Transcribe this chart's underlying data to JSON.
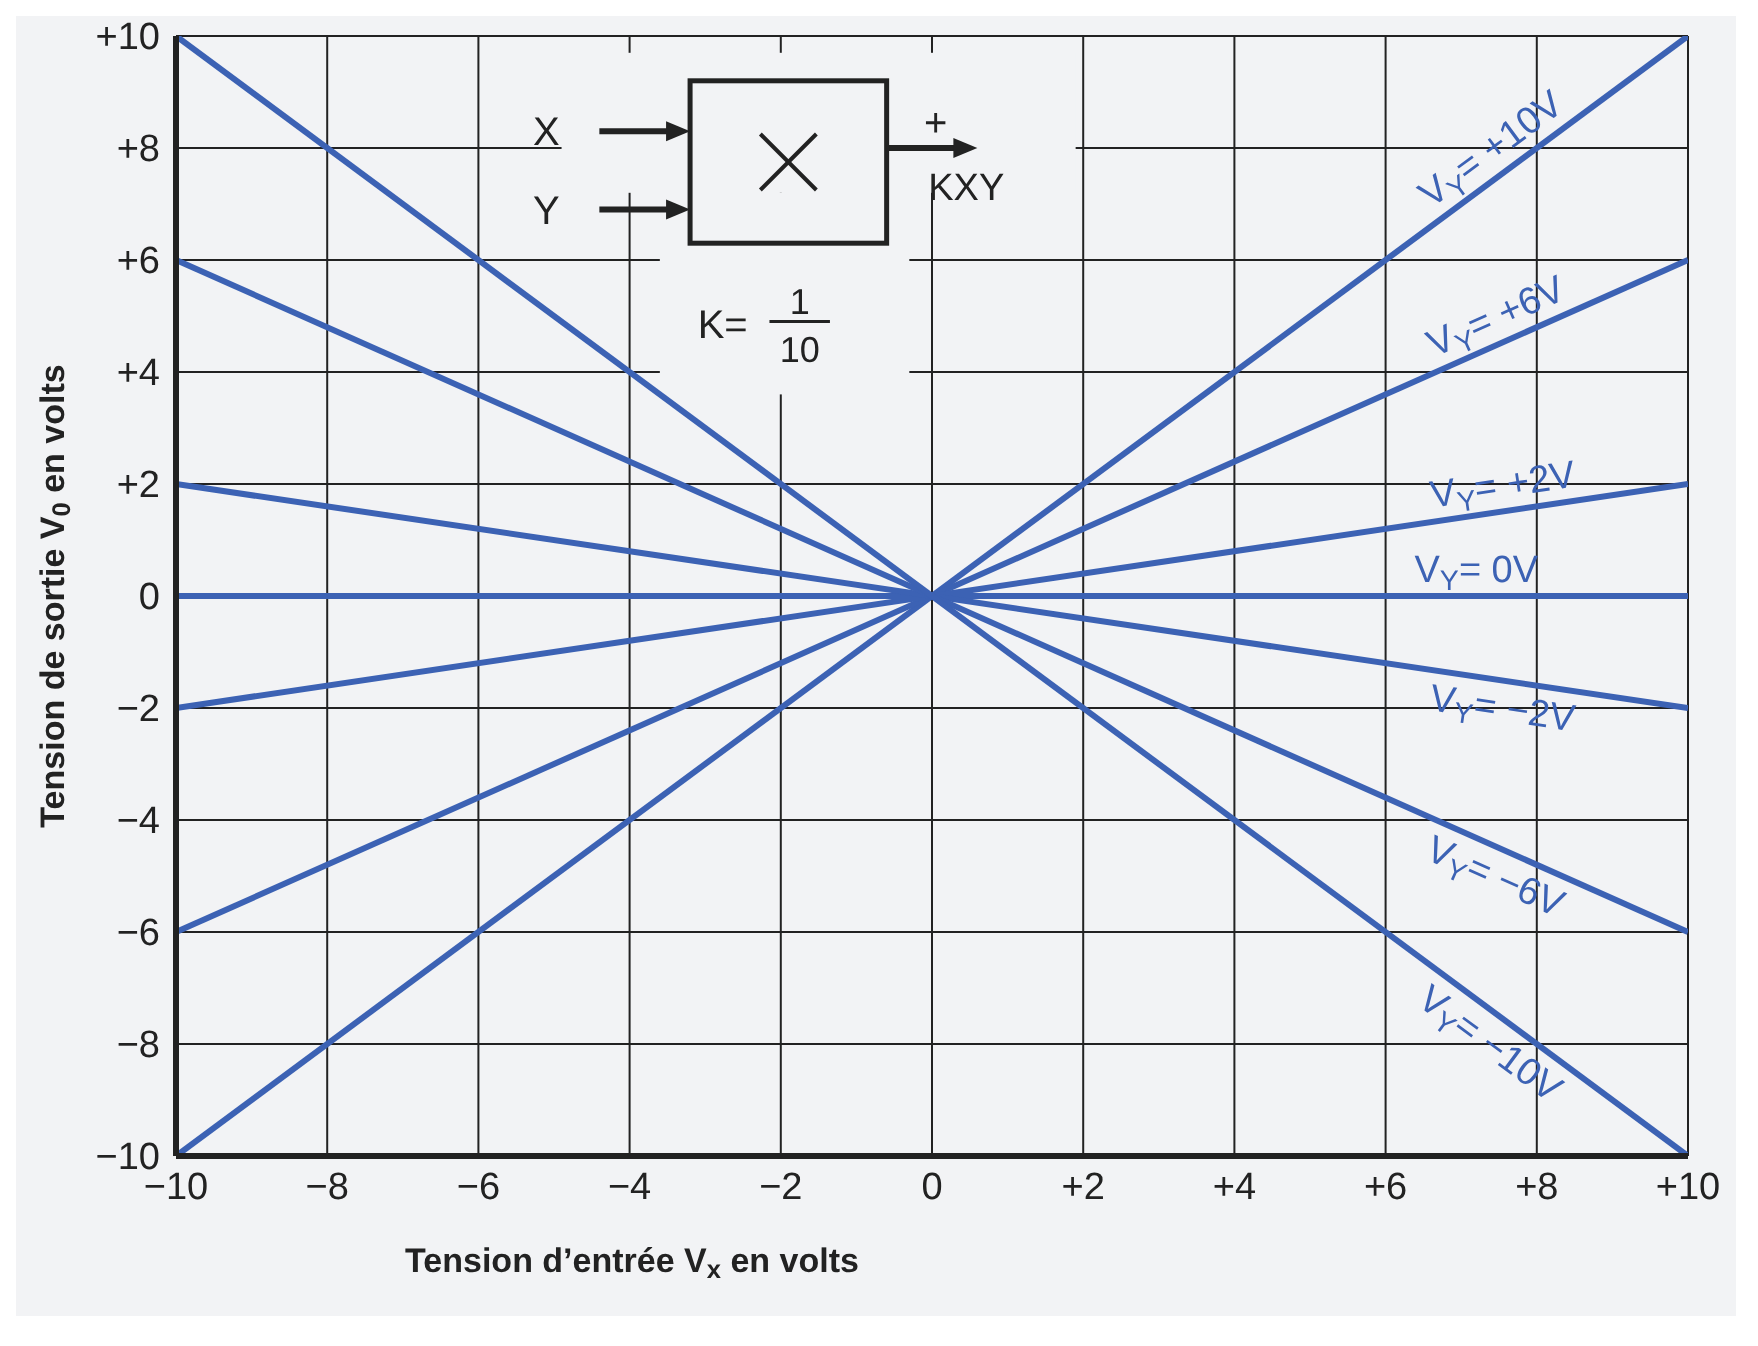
{
  "chart_data": {
    "type": "line",
    "xlabel": "Tension d’entrée V$_{x}$ en volts",
    "ylabel": "Tension de sortie V$_{0}$ en volts",
    "x": [
      -10,
      10
    ],
    "series": [
      {
        "name": "V$_{Y}$= +10V",
        "color": "#3c62b4",
        "values": [
          -10,
          10
        ]
      },
      {
        "name": "V$_{Y}$= +6V",
        "color": "#3c62b4",
        "values": [
          -6,
          6
        ]
      },
      {
        "name": "V$_{Y}$= +2V",
        "color": "#3c62b4",
        "values": [
          -2,
          2
        ]
      },
      {
        "name": "V$_{Y}$= 0V",
        "color": "#3c62b4",
        "values": [
          0,
          0
        ]
      },
      {
        "name": "V$_{Y}$= −2V",
        "color": "#3c62b4",
        "values": [
          2,
          -2
        ]
      },
      {
        "name": "V$_{Y}$= −6V",
        "color": "#3c62b4",
        "values": [
          6,
          -6
        ]
      },
      {
        "name": "V$_{Y}$= −10V",
        "color": "#3c62b4",
        "values": [
          10,
          -10
        ]
      }
    ],
    "xlim": [
      -10,
      10
    ],
    "xticks": [
      {
        "value": -10,
        "label": "−10"
      },
      {
        "value": -8,
        "label": "−8"
      },
      {
        "value": -6,
        "label": "−6"
      },
      {
        "value": -4,
        "label": "−4"
      },
      {
        "value": -2,
        "label": "−2"
      },
      {
        "value": 0,
        "label": "0"
      },
      {
        "value": 2,
        "label": "+2"
      },
      {
        "value": 4,
        "label": "+4"
      },
      {
        "value": 6,
        "label": "+6"
      },
      {
        "value": 8,
        "label": "+8"
      },
      {
        "value": 10,
        "label": "+10"
      }
    ],
    "ylim": [
      -10,
      10
    ],
    "yticks": [
      {
        "value": -10,
        "label": "−10"
      },
      {
        "value": -8,
        "label": "−8"
      },
      {
        "value": -6,
        "label": "−6"
      },
      {
        "value": -4,
        "label": "−4"
      },
      {
        "value": -2,
        "label": "−2"
      },
      {
        "value": 0,
        "label": "0"
      },
      {
        "value": 2,
        "label": "+2"
      },
      {
        "value": 4,
        "label": "+4"
      },
      {
        "value": 6,
        "label": "+6"
      },
      {
        "value": 8,
        "label": "+8"
      },
      {
        "value": 10,
        "label": "+10"
      }
    ],
    "annotations": [
      "X",
      "Y",
      "+",
      "KXY",
      "K=",
      "1",
      "10"
    ],
    "grid": true,
    "legend": false,
    "marker": "none",
    "line_style": "solid"
  }
}
